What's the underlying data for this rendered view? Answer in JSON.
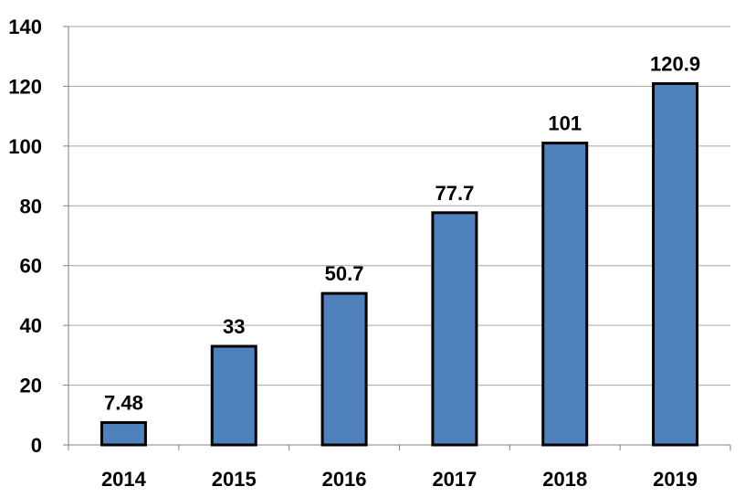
{
  "chart_data": {
    "type": "bar",
    "categories": [
      "2014",
      "2015",
      "2016",
      "2017",
      "2018",
      "2019"
    ],
    "values": [
      7.48,
      33,
      50.7,
      77.7,
      101,
      120.9
    ],
    "data_labels": [
      "7.48",
      "33",
      "50.7",
      "77.7",
      "101",
      "120.9"
    ],
    "title": "",
    "xlabel": "",
    "ylabel": "",
    "ylim": [
      0,
      140
    ],
    "yticks": [
      0,
      20,
      40,
      60,
      80,
      100,
      120,
      140
    ],
    "ytick_labels": [
      "0",
      "20",
      "40",
      "60",
      "80",
      "100",
      "120",
      "140"
    ],
    "grid": true,
    "legend": "none",
    "colors": {
      "bar_fill": "#4F81BD",
      "bar_stroke": "#000000",
      "grid": "#A6A6A6",
      "axis": "#808080"
    }
  }
}
